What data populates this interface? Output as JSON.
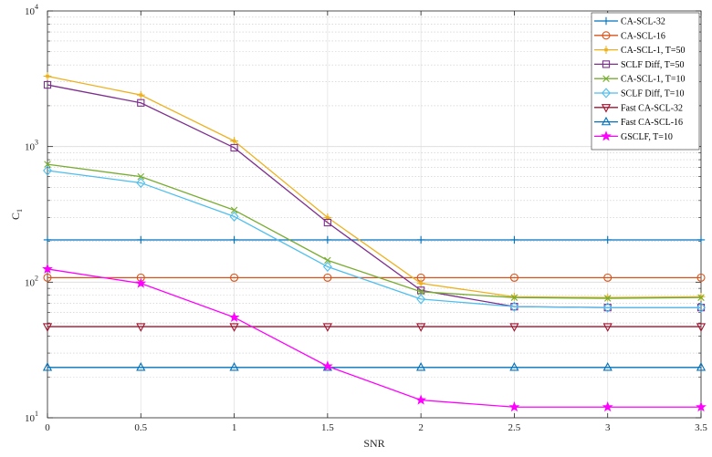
{
  "chart_data": {
    "type": "line",
    "xlabel": "SNR",
    "ylabel": "C",
    "ylabel_sub": "1",
    "yscale": "log",
    "xlim": [
      0,
      3.5
    ],
    "ylim": [
      10,
      10000
    ],
    "x_ticks": [
      "0",
      "0.5",
      "1",
      "1.5",
      "2",
      "2.5",
      "3",
      "3.5"
    ],
    "y_ticks": [
      {
        "base": "10",
        "exp": "1"
      },
      {
        "base": "10",
        "exp": "2"
      },
      {
        "base": "10",
        "exp": "3"
      },
      {
        "base": "10",
        "exp": "4"
      }
    ],
    "grid": true,
    "legend_position": "top-right",
    "x": [
      0,
      0.5,
      1,
      1.5,
      2,
      2.5,
      3,
      3.5
    ],
    "series": [
      {
        "name": "CA-SCL-32",
        "color": "#0072BD",
        "marker": "plus",
        "values": [
          205,
          205,
          205,
          205,
          205,
          205,
          205,
          205
        ]
      },
      {
        "name": "CA-SCL-16",
        "color": "#D95319",
        "marker": "circle",
        "values": [
          108,
          108,
          108,
          108,
          108,
          108,
          108,
          108
        ]
      },
      {
        "name": "CA-SCL-1, T=50",
        "color": "#EDB120",
        "marker": "star",
        "values": [
          3300,
          2400,
          1100,
          300,
          98,
          78,
          77,
          78
        ]
      },
      {
        "name": "SCLF Diff, T=50",
        "color": "#7E2F8E",
        "marker": "square",
        "values": [
          2850,
          2100,
          980,
          275,
          87,
          66,
          65,
          65
        ]
      },
      {
        "name": "CA-SCL-1, T=10",
        "color": "#77AC30",
        "marker": "x",
        "values": [
          740,
          600,
          340,
          145,
          85,
          77,
          76,
          77
        ]
      },
      {
        "name": "SCLF Diff, T=10",
        "color": "#4DBEEE",
        "marker": "diamond",
        "values": [
          665,
          540,
          305,
          130,
          75,
          66,
          65,
          65
        ]
      },
      {
        "name": "Fast CA-SCL-32",
        "color": "#A2142F",
        "marker": "triangle-down",
        "values": [
          47,
          47,
          47,
          47,
          47,
          47,
          47,
          47
        ]
      },
      {
        "name": "Fast CA-SCL-16",
        "color": "#0072BD",
        "marker": "triangle-up",
        "values": [
          23.5,
          23.5,
          23.5,
          23.5,
          23.5,
          23.5,
          23.5,
          23.5
        ]
      },
      {
        "name": "GSCLF, T=10",
        "color": "#FF00FF",
        "marker": "pentagram",
        "values": [
          125,
          98,
          55,
          24,
          13.5,
          12,
          12,
          12
        ]
      }
    ]
  }
}
